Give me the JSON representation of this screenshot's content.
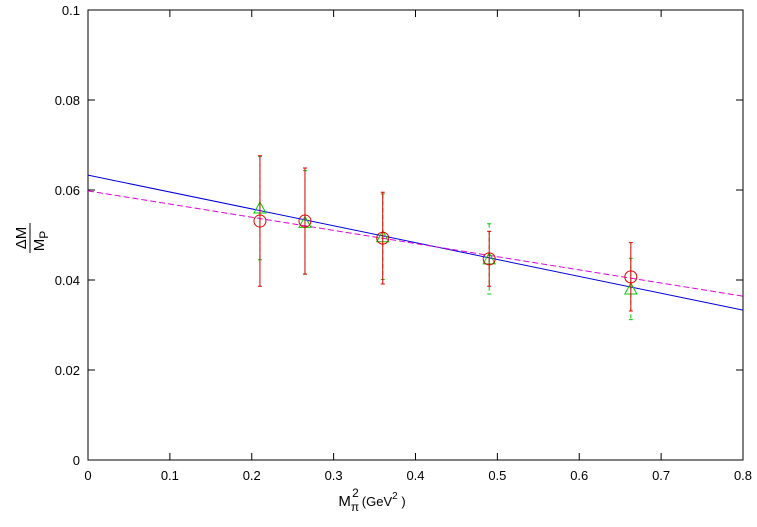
{
  "chart_data": {
    "type": "scatter",
    "xlabel": {
      "main": "M",
      "sub": "π",
      "sup": "2",
      "unit": "(GeV",
      "unit_sup": "2",
      "unit_end": " )"
    },
    "ylabel": {
      "numerator": "ΔM",
      "denominator": "M",
      "denominator_sub": "P"
    },
    "xlim": [
      0,
      0.8
    ],
    "xticks": [
      0,
      0.1,
      0.2,
      0.3,
      0.4,
      0.5,
      0.6,
      0.7,
      0.8
    ],
    "ylim": [
      0,
      0.1
    ],
    "yticks": [
      0,
      0.02,
      0.04,
      0.06,
      0.08,
      0.1
    ],
    "series": [
      {
        "marker": "triangle",
        "color": "#00cc00",
        "dash": true,
        "x": [
          0.21,
          0.265,
          0.36,
          0.49,
          0.663
        ],
        "values": [
          0.056,
          0.0528,
          0.0496,
          0.0447,
          0.038
        ],
        "errors": [
          0.0115,
          0.0115,
          0.0095,
          0.0078,
          0.0068
        ]
      },
      {
        "marker": "circle",
        "color": "#dd0000",
        "dash": false,
        "x": [
          0.21,
          0.265,
          0.36,
          0.49,
          0.663
        ],
        "values": [
          0.0531,
          0.0531,
          0.0493,
          0.0447,
          0.0407
        ],
        "errors": [
          0.0145,
          0.0118,
          0.0102,
          0.0061,
          0.0076
        ]
      }
    ],
    "lines": [
      {
        "color": "#0000dd",
        "dash": false,
        "x": [
          0,
          0.8
        ],
        "values": [
          0.0633,
          0.0333
        ]
      },
      {
        "color": "#dd00dd",
        "dash": true,
        "x": [
          0,
          0.8
        ],
        "values": [
          0.0598,
          0.0364
        ]
      }
    ]
  }
}
